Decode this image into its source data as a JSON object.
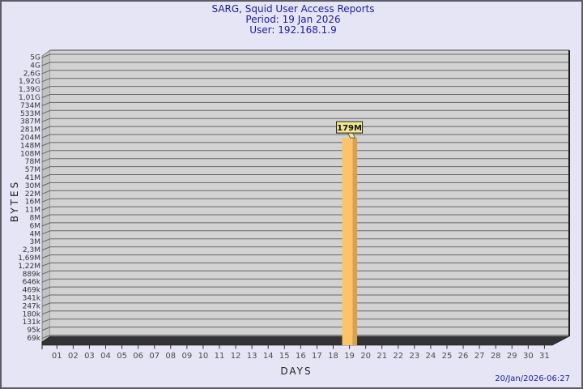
{
  "window": {
    "bg_color": "#e5e5f5",
    "frame_color": "#5c5c66"
  },
  "title": {
    "line1": "SARG, Squid User Access Reports",
    "line2": "Period: 19 Jan 2026",
    "line3": "User: 192.168.1.9",
    "color": "#1b1b9e"
  },
  "footer": {
    "timestamp": "20/Jan/2026-06:27"
  },
  "chart_data": {
    "type": "bar",
    "title": "SARG, Squid User Access Reports",
    "subtitle": "Period: 19 Jan 2026",
    "user": "User: 192.168.1.9",
    "xlabel": "DAYS",
    "ylabel": "BYTES",
    "x_ticks": [
      "01",
      "02",
      "03",
      "04",
      "05",
      "06",
      "07",
      "08",
      "09",
      "10",
      "11",
      "12",
      "13",
      "14",
      "15",
      "16",
      "17",
      "18",
      "19",
      "20",
      "21",
      "22",
      "23",
      "24",
      "25",
      "26",
      "27",
      "28",
      "29",
      "30",
      "31"
    ],
    "y_ticks": [
      "5G",
      "4G",
      "2,6G",
      "1,92G",
      "1,39G",
      "1,01G",
      "734M",
      "533M",
      "387M",
      "281M",
      "204M",
      "148M",
      "108M",
      "78M",
      "57M",
      "41M",
      "30M",
      "22M",
      "16M",
      "11M",
      "8M",
      "6M",
      "4M",
      "3M",
      "2,3M",
      "1,69M",
      "1,22M",
      "889k",
      "646k",
      "469k",
      "341k",
      "247k",
      "180k",
      "131k",
      "95k",
      "69k"
    ],
    "y_scale": "log",
    "grid": true,
    "bars": [
      {
        "day": "19",
        "value_label": "179M",
        "value_bytes": 179000000
      }
    ],
    "colors": {
      "plot_bg": "#d2d2d2",
      "gridline": "#666666",
      "wall": "#c2c2c2",
      "floor": "#333333",
      "bar_front": "#fcc469",
      "bar_side": "#d9a14e",
      "value_box_bg": "#f2e88f",
      "value_box_border": "#222222",
      "tick_text": "#4d4d4d",
      "ytick_text": "#333333"
    }
  }
}
